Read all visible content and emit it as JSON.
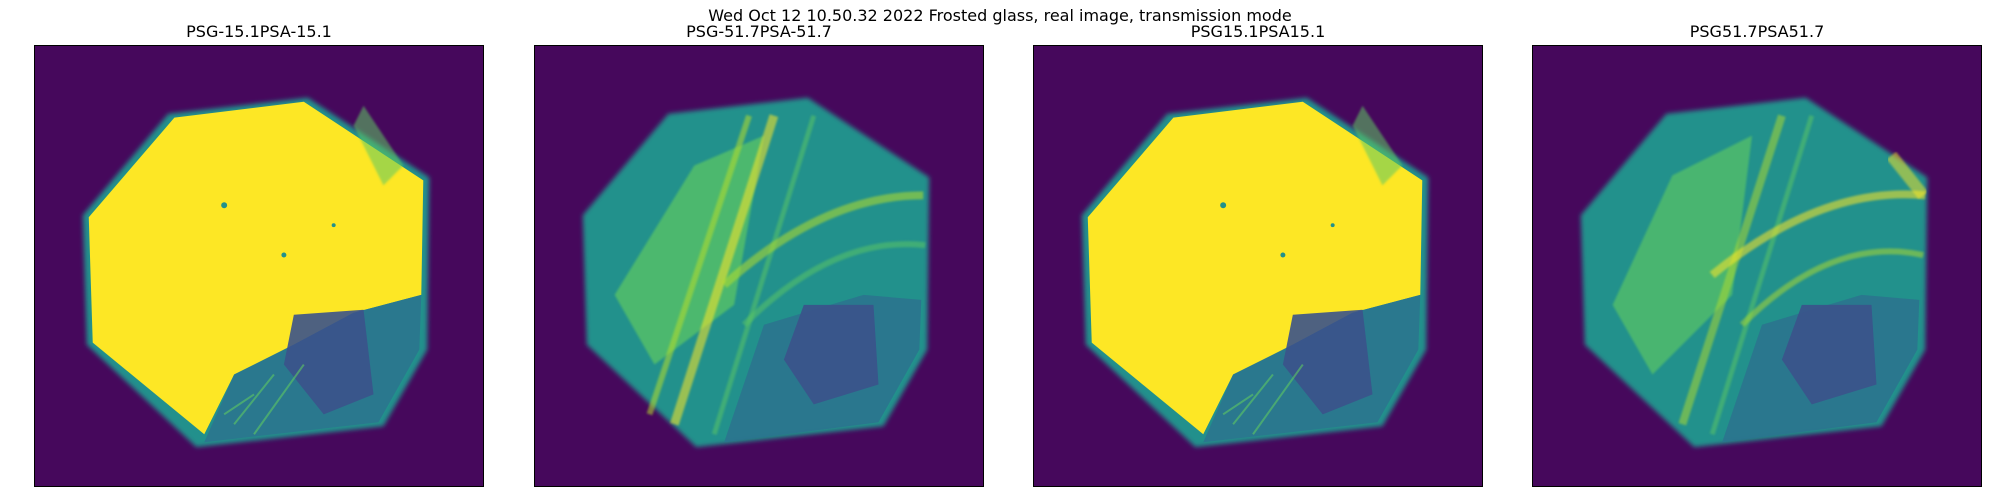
{
  "figure": {
    "suptitle": "Wed Oct 12 10.50.32 2022 Frosted glass, real image, transmission mode"
  },
  "colormap": {
    "name": "viridis",
    "background": "#46085c",
    "low": "#3b528b",
    "mid": "#21918c",
    "high": "#5ec962",
    "peak": "#fde725"
  },
  "panels": [
    {
      "title": "PSG-15.1PSA-15.1",
      "brightness": "high"
    },
    {
      "title": "PSG-51.7PSA-51.7",
      "brightness": "low"
    },
    {
      "title": "PSG15.1PSA15.1",
      "brightness": "high"
    },
    {
      "title": "PSG51.7PSA51.7",
      "brightness": "low"
    }
  ]
}
